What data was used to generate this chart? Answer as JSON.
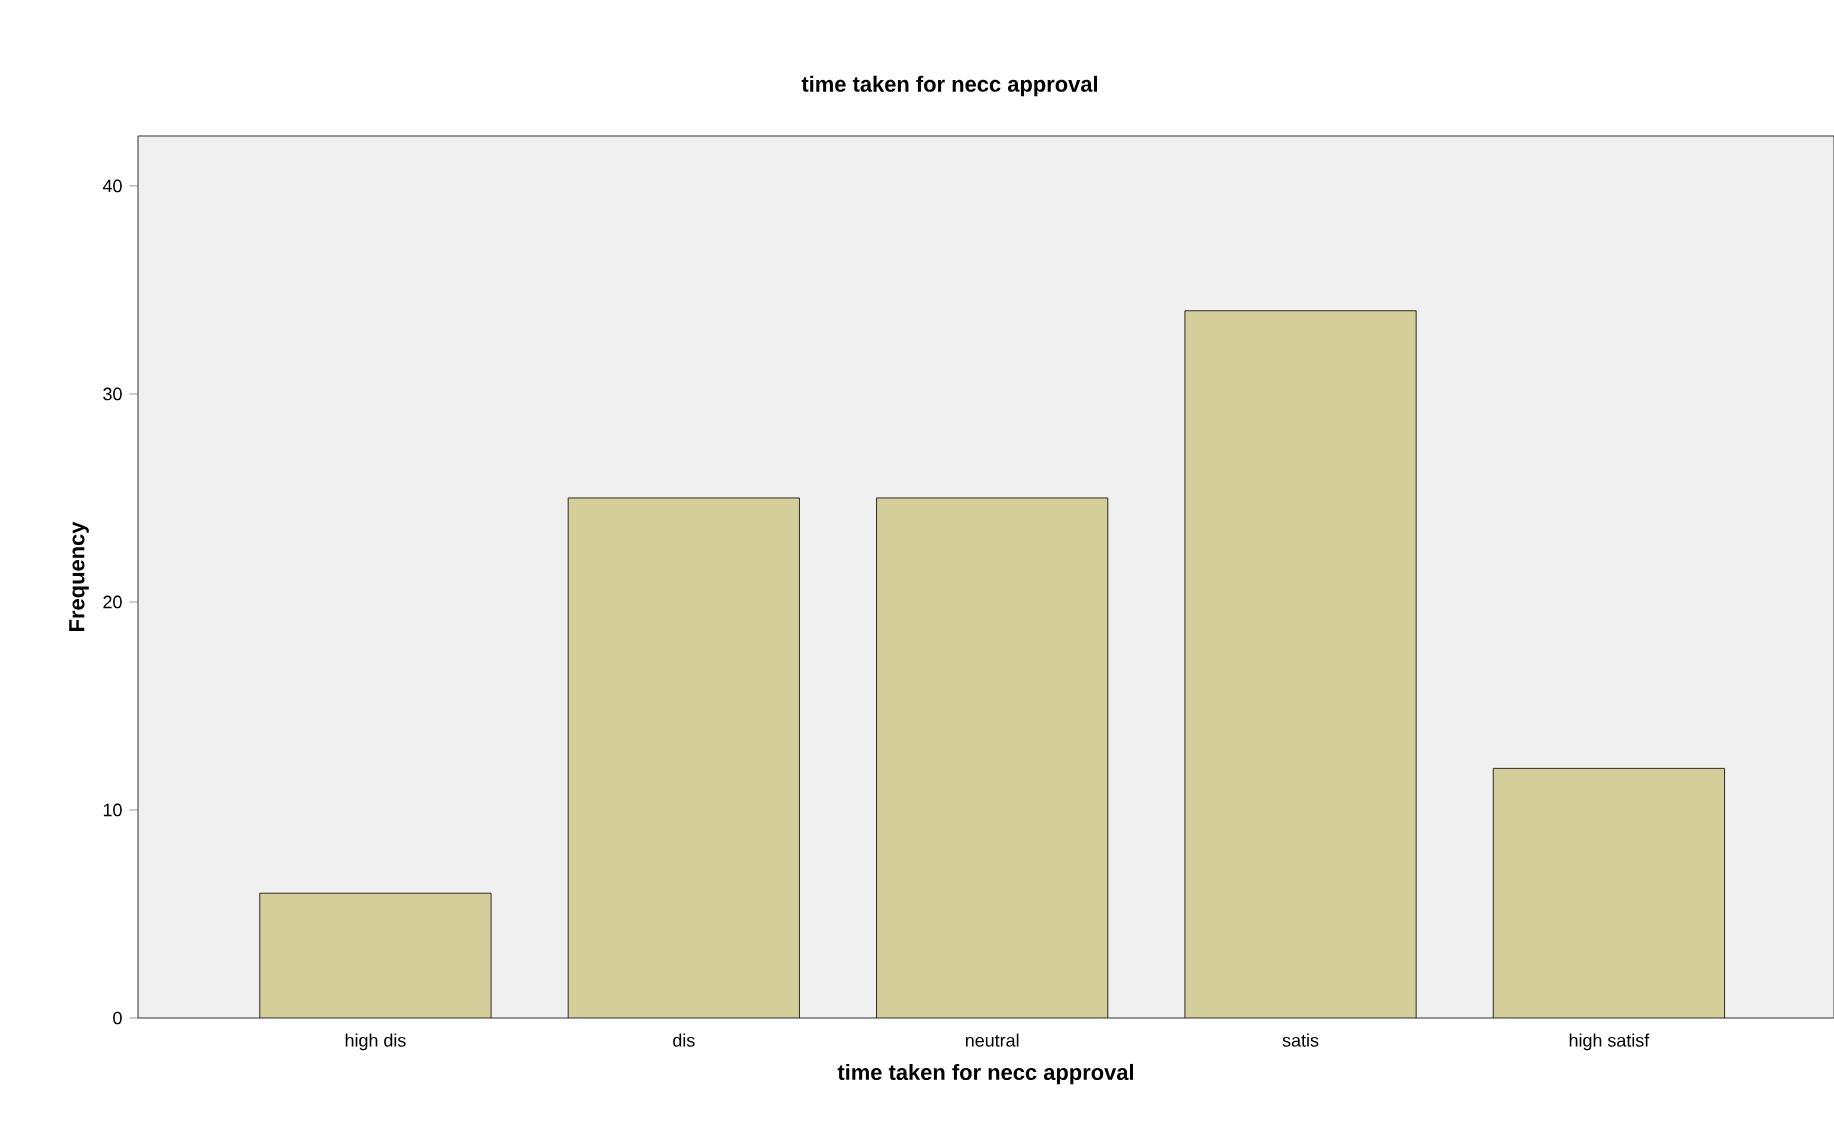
{
  "chart_data": {
    "type": "bar",
    "title": "time taken for necc approval",
    "xlabel": "time taken for necc approval",
    "ylabel": "Frequency",
    "categories": [
      "high dis",
      "dis",
      "neutral",
      "satis",
      "high satisf"
    ],
    "values": [
      6,
      25,
      25,
      34,
      12
    ],
    "color": "#d3ce9a",
    "ylim": [
      0,
      42.4
    ],
    "yticks": [
      0,
      10,
      20,
      30,
      40
    ],
    "grid": false
  }
}
